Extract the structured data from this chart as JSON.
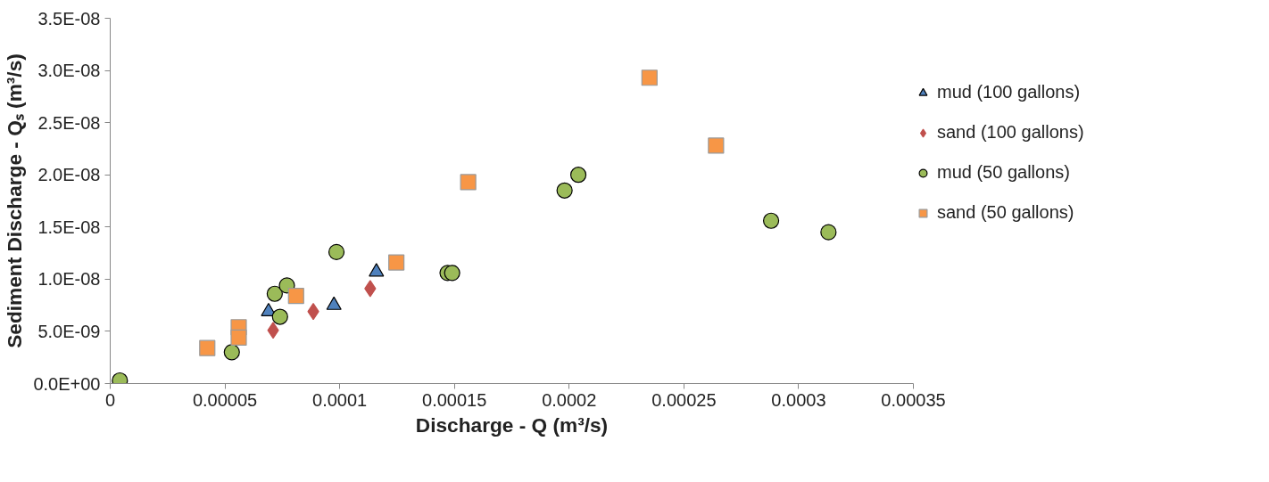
{
  "chart_data": {
    "type": "scatter",
    "xlabel": "Discharge - Q (m³/s)",
    "ylabel": "Sediment Discharge - Qₛ (m³/s)",
    "xlim": [
      0,
      0.00035
    ],
    "ylim": [
      0,
      3.5e-08
    ],
    "xticks": [
      {
        "value": 0,
        "label": "0"
      },
      {
        "value": 5e-05,
        "label": "0.00005"
      },
      {
        "value": 0.0001,
        "label": "0.0001"
      },
      {
        "value": 0.00015,
        "label": "0.00015"
      },
      {
        "value": 0.0002,
        "label": "0.0002"
      },
      {
        "value": 0.00025,
        "label": "0.00025"
      },
      {
        "value": 0.0003,
        "label": "0.0003"
      },
      {
        "value": 0.00035,
        "label": "0.00035"
      }
    ],
    "yticks": [
      {
        "value": 0,
        "label": "0.0E+00"
      },
      {
        "value": 5e-09,
        "label": "5.0E-09"
      },
      {
        "value": 1e-08,
        "label": "1.0E-08"
      },
      {
        "value": 1.5e-08,
        "label": "1.5E-08"
      },
      {
        "value": 2e-08,
        "label": "2.0E-08"
      },
      {
        "value": 2.5e-08,
        "label": "2.5E-08"
      },
      {
        "value": 3e-08,
        "label": "3.0E-08"
      },
      {
        "value": 3.5e-08,
        "label": "3.5E-08"
      }
    ],
    "grid": false,
    "legend": "right",
    "series": [
      {
        "name": "mud (100 gallons)",
        "color": "#4f81bd",
        "marker": "triangle",
        "x": [
          6.9e-05,
          9.75e-05,
          0.000116
        ],
        "values": [
          6.9e-09,
          7.5e-09,
          1.07e-08
        ]
      },
      {
        "name": "sand (100 gallons)",
        "color": "#c0504d",
        "marker": "diamond",
        "x": [
          7.1e-05,
          8.85e-05,
          0.0001133
        ],
        "values": [
          5.1e-09,
          6.9e-09,
          9.1e-09
        ]
      },
      {
        "name": "mud (50 gallons)",
        "color": "#9bbb59",
        "marker": "circle",
        "x": [
          4.2e-06,
          5.3e-05,
          7.17e-05,
          7.4e-05,
          7.7e-05,
          9.86e-05,
          0.000147,
          0.000149,
          0.000198,
          0.000204,
          0.000288,
          0.000313
        ],
        "values": [
          3e-10,
          3e-09,
          8.6e-09,
          6.4e-09,
          9.4e-09,
          1.26e-08,
          1.06e-08,
          1.06e-08,
          1.85e-08,
          2e-08,
          1.56e-08,
          1.45e-08
        ]
      },
      {
        "name": "sand (50 gallons)",
        "color": "#f79646",
        "marker": "square",
        "x": [
          4.23e-05,
          5.6e-05,
          5.6e-05,
          8.1e-05,
          0.0001247,
          0.000156,
          0.000235,
          0.000264
        ],
        "values": [
          3.4e-09,
          5.4e-09,
          4.4e-09,
          8.4e-09,
          1.16e-08,
          1.93e-08,
          2.93e-08,
          2.28e-08
        ]
      }
    ]
  }
}
